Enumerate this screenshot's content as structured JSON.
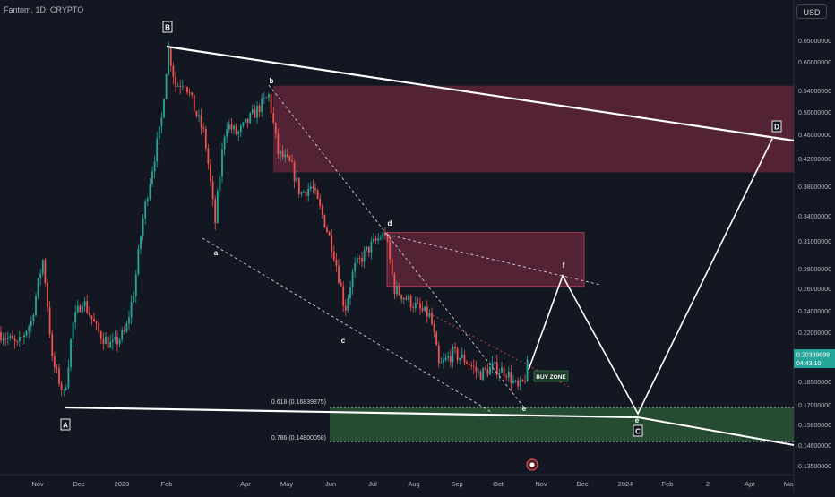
{
  "header": {
    "symbol_label": "Fantom, 1D, CRYPTO",
    "currency": "USD"
  },
  "chart_data": {
    "type": "candlestick",
    "y_axis": {
      "ticks": [
        "0.65000000",
        "0.60000000",
        "0.54000000",
        "0.50000000",
        "0.46000000",
        "0.42000000",
        "0.38000000",
        "0.34000000",
        "0.31000000",
        "0.28000000",
        "0.26000000",
        "0.24000000",
        "0.22000000",
        "0.18500000",
        "0.17000000",
        "0.15800000",
        "0.14600000",
        "0.13500000"
      ],
      "tick_values": [
        0.65,
        0.6,
        0.54,
        0.5,
        0.46,
        0.42,
        0.38,
        0.34,
        0.31,
        0.28,
        0.26,
        0.24,
        0.22,
        0.185,
        0.17,
        0.158,
        0.146,
        0.135
      ]
    },
    "x_axis": {
      "labels": [
        "Nov",
        "Dec",
        "2023",
        "Feb",
        "Apr",
        "May",
        "Jun",
        "Jul",
        "Aug",
        "Sep",
        "Oct",
        "Nov",
        "Dec",
        "2024",
        "Feb",
        "2",
        "Apr",
        "Ma"
      ]
    },
    "current_price": {
      "value": "0.20369698",
      "countdown": "04:43:10"
    },
    "fib_levels": [
      {
        "label": "0.618 (0.16839875)",
        "value": 0.16839875
      },
      {
        "label": "0.786 (0.14800058)",
        "value": 0.14800058
      }
    ],
    "zones": [
      {
        "label": "",
        "from": 0.4,
        "to": 0.55
      },
      {
        "label": "",
        "from": 0.262,
        "to": 0.32
      },
      {
        "label": "BUY ZONE",
        "value": 0.19
      }
    ],
    "wave_labels": [
      "A",
      "B",
      "C",
      "D",
      "a",
      "b",
      "c",
      "d",
      "e",
      "f",
      "e"
    ],
    "colors": {
      "up": "#26a69a",
      "down": "#ef5350",
      "supply_zone": "#8a2c46",
      "demand_zone": "#2e5d3a",
      "price_tag": "#26a69a"
    }
  }
}
